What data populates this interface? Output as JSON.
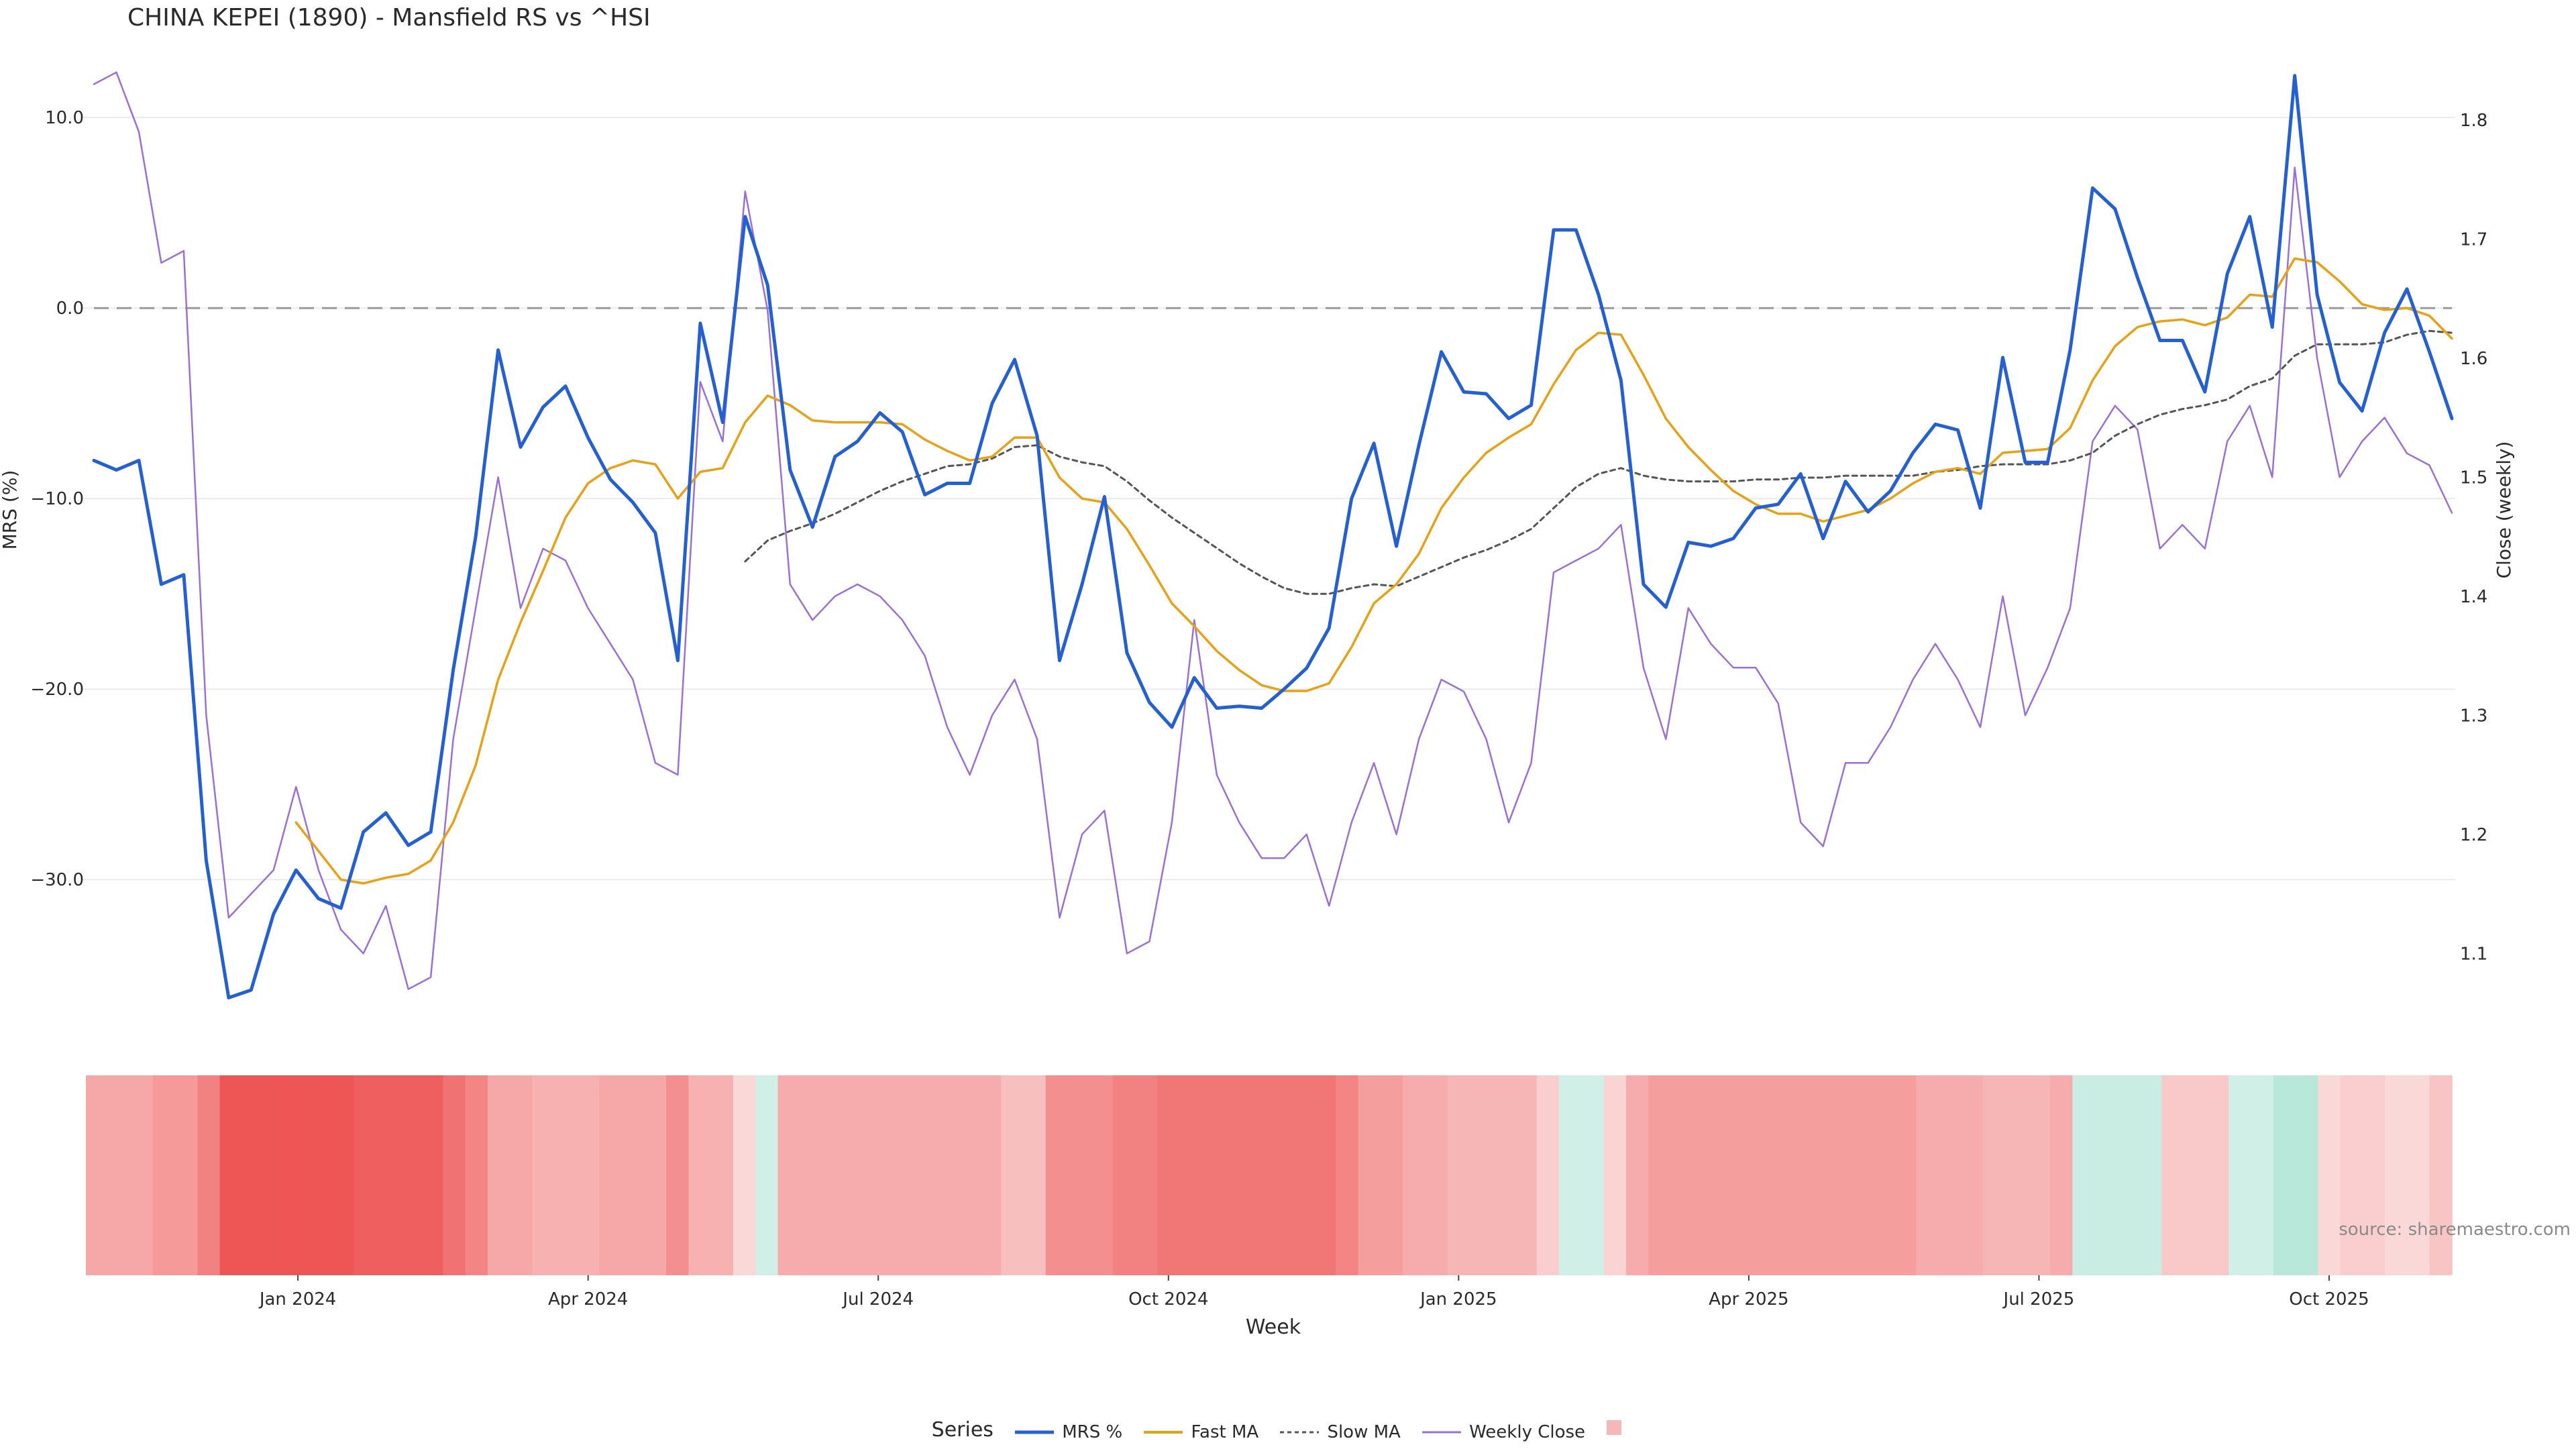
{
  "chart_data": {
    "type": "line",
    "title": "CHINA KEPEI (1890) - Mansfield RS vs ^HSI",
    "xlabel": "Week",
    "ylabel_left": "MRS (%)",
    "ylabel_right": "Close (weekly)",
    "ylim_left": [
      -37,
      13
    ],
    "ylim_right": [
      1.05,
      1.85
    ],
    "yticks_left": [
      "10.0",
      "0.0",
      "−10.0",
      "−20.0",
      "−30.0"
    ],
    "yticks_left_values": [
      10,
      0,
      -10,
      -20,
      -30
    ],
    "yticks_right": [
      "1.8",
      "1.7",
      "1.6",
      "1.5",
      "1.4",
      "1.3",
      "1.2",
      "1.1"
    ],
    "yticks_right_values": [
      1.8,
      1.7,
      1.6,
      1.5,
      1.4,
      1.3,
      1.2,
      1.1
    ],
    "x_tick_labels": [
      "Jan 2024",
      "Apr 2024",
      "Jul 2024",
      "Oct 2024",
      "Jan 2025",
      "Apr 2025",
      "Jul 2025",
      "Oct 2025"
    ],
    "x_tick_weeks": [
      9.5,
      22.5,
      35.5,
      48.5,
      61.5,
      74.5,
      87.5,
      100.5
    ],
    "zero_line": 0,
    "series": [
      {
        "name": "MRS %",
        "color": "#2460d0",
        "axis": "left",
        "values": [
          -8,
          -8.5,
          -8,
          -14.5,
          -14,
          -29,
          -36.2,
          -35.8,
          -31.8,
          -29.5,
          -31,
          -31.5,
          -27.5,
          -26.5,
          -28.2,
          -27.5,
          -19,
          -12,
          -2.2,
          -7.3,
          -5.2,
          -4.1,
          -6.8,
          -9,
          -10.2,
          -11.8,
          -18.5,
          -0.8,
          -6,
          4.8,
          1.2,
          -8.5,
          -11.5,
          -7.8,
          -7,
          -5.5,
          -6.5,
          -9.8,
          -9.2,
          -9.2,
          -5,
          -2.7,
          -6.7,
          -18.5,
          -14.5,
          -9.9,
          -18.1,
          -20.7,
          -22,
          -19.4,
          -21,
          -20.9,
          -21,
          -20,
          -18.9,
          -16.8,
          -10,
          -7.1,
          -12.5,
          -7.2,
          -2.3,
          -4.4,
          -4.5,
          -5.8,
          -5.1,
          4.1,
          4.1,
          0.7,
          -3.8,
          -14.5,
          -15.7,
          -12.3,
          -12.5,
          -12.1,
          -10.5,
          -10.3,
          -8.7,
          -12.1,
          -9.1,
          -10.7,
          -9.6,
          -7.6,
          -6.1,
          -6.4,
          -10.5,
          -2.6,
          -8.1,
          -8.1,
          -2.2,
          6.3,
          5.2,
          1.6,
          -1.7,
          -1.7,
          -4.4,
          1.8,
          4.8,
          -1,
          12.2,
          0.7,
          -3.9,
          -5.4,
          -1.3,
          1,
          -2.3,
          -5.8
        ]
      },
      {
        "name": "Fast MA",
        "color": "#e6a117",
        "axis": "left",
        "values": [
          null,
          null,
          null,
          null,
          null,
          null,
          null,
          null,
          null,
          -27,
          -28.5,
          -30,
          -30.2,
          -29.9,
          -29.7,
          -29,
          -27,
          -24,
          -19.5,
          -16.5,
          -13.8,
          -11,
          -9.2,
          -8.4,
          -8,
          -8.2,
          -10,
          -8.6,
          -8.4,
          -6,
          -4.6,
          -5.1,
          -5.9,
          -6,
          -6,
          -6,
          -6.1,
          -6.9,
          -7.5,
          -8,
          -7.8,
          -6.8,
          -6.8,
          -8.9,
          -10,
          -10.2,
          -11.6,
          -13.5,
          -15.5,
          -16.7,
          -18,
          -19,
          -19.8,
          -20.1,
          -20.1,
          -19.7,
          -17.8,
          -15.5,
          -14.5,
          -12.9,
          -10.5,
          -8.9,
          -7.6,
          -6.8,
          -6.1,
          -4,
          -2.2,
          -1.3,
          -1.4,
          -3.5,
          -5.8,
          -7.3,
          -8.5,
          -9.6,
          -10.3,
          -10.8,
          -10.8,
          -11.2,
          -10.9,
          -10.6,
          -10,
          -9.2,
          -8.6,
          -8.4,
          -8.7,
          -7.6,
          -7.5,
          -7.4,
          -6.3,
          -3.8,
          -2,
          -1,
          -0.7,
          -0.6,
          -0.9,
          -0.5,
          0.7,
          0.6,
          2.6,
          2.4,
          1.4,
          0.2,
          -0.1,
          0,
          -0.4,
          -1.6
        ]
      },
      {
        "name": "Slow MA",
        "color": "#555555",
        "axis": "left",
        "dash": true,
        "values": [
          null,
          null,
          null,
          null,
          null,
          null,
          null,
          null,
          null,
          null,
          null,
          null,
          null,
          null,
          null,
          null,
          null,
          null,
          null,
          null,
          null,
          null,
          null,
          null,
          null,
          null,
          null,
          null,
          null,
          -13.3,
          -12.2,
          -11.7,
          -11.3,
          -10.8,
          -10.2,
          -9.6,
          -9.1,
          -8.7,
          -8.3,
          -8.2,
          -7.9,
          -7.3,
          -7.2,
          -7.8,
          -8.1,
          -8.3,
          -9.1,
          -10.1,
          -11,
          -11.8,
          -12.6,
          -13.4,
          -14.1,
          -14.7,
          -15,
          -15,
          -14.7,
          -14.5,
          -14.6,
          -14.1,
          -13.6,
          -13.1,
          -12.7,
          -12.2,
          -11.6,
          -10.5,
          -9.4,
          -8.7,
          -8.4,
          -8.8,
          -9,
          -9.1,
          -9.1,
          -9.1,
          -9,
          -9,
          -8.9,
          -8.9,
          -8.8,
          -8.8,
          -8.8,
          -8.8,
          -8.6,
          -8.5,
          -8.3,
          -8.2,
          -8.2,
          -8.2,
          -8,
          -7.6,
          -6.7,
          -6.1,
          -5.6,
          -5.3,
          -5.1,
          -4.8,
          -4.1,
          -3.7,
          -2.5,
          -1.9,
          -1.9,
          -1.9,
          -1.8,
          -1.4,
          -1.2,
          -1.3
        ]
      },
      {
        "name": "Weekly Close",
        "color": "#9b70d4",
        "axis": "right",
        "values": [
          1.83,
          1.84,
          1.79,
          1.68,
          1.69,
          1.3,
          1.13,
          1.15,
          1.17,
          1.24,
          1.17,
          1.12,
          1.1,
          1.14,
          1.07,
          1.08,
          1.28,
          1.39,
          1.5,
          1.39,
          1.44,
          1.43,
          1.39,
          1.36,
          1.33,
          1.26,
          1.25,
          1.58,
          1.53,
          1.74,
          1.64,
          1.41,
          1.38,
          1.4,
          1.41,
          1.4,
          1.38,
          1.35,
          1.29,
          1.25,
          1.3,
          1.33,
          1.28,
          1.13,
          1.2,
          1.22,
          1.1,
          1.11,
          1.21,
          1.38,
          1.25,
          1.21,
          1.18,
          1.18,
          1.2,
          1.14,
          1.21,
          1.26,
          1.2,
          1.28,
          1.33,
          1.32,
          1.28,
          1.21,
          1.26,
          1.42,
          1.43,
          1.44,
          1.46,
          1.34,
          1.28,
          1.39,
          1.36,
          1.34,
          1.34,
          1.31,
          1.21,
          1.19,
          1.26,
          1.26,
          1.29,
          1.33,
          1.36,
          1.33,
          1.29,
          1.4,
          1.3,
          1.34,
          1.39,
          1.53,
          1.56,
          1.54,
          1.44,
          1.46,
          1.44,
          1.53,
          1.56,
          1.5,
          1.76,
          1.6,
          1.5,
          1.53,
          1.55,
          1.52,
          1.51,
          1.47
        ]
      }
    ],
    "heatmap_strip": {
      "description": "MRS regime shading per week (negative = red, positive = green)",
      "values": [
        -13,
        -13,
        -13,
        -16,
        -16,
        -21,
        -30,
        -30,
        -30,
        -30,
        -30,
        -30,
        -28,
        -28,
        -28,
        -28,
        -24,
        -20,
        -13,
        -13,
        -11,
        -11,
        -11,
        -13,
        -13,
        -13,
        -18,
        -11,
        -11,
        -3,
        2,
        -12,
        -12,
        -12,
        -12,
        -12,
        -12,
        -12,
        -12,
        -12,
        -12,
        -8,
        -8,
        -18,
        -18,
        -18,
        -21,
        -21,
        -23,
        -23,
        -23,
        -23,
        -23,
        -23,
        -23,
        -23,
        -20,
        -15,
        -15,
        -12,
        -12,
        -10,
        -10,
        -10,
        -10,
        -5,
        2,
        2,
        -4,
        -12,
        -15,
        -15,
        -15,
        -15,
        -15,
        -15,
        -15,
        -15,
        -15,
        -15,
        -15,
        -15,
        -12,
        -12,
        -12,
        -10,
        -10,
        -10,
        -12,
        3,
        3,
        3,
        3,
        -6,
        -6,
        -6,
        2,
        2,
        6,
        6,
        -3,
        -5,
        -5,
        -3,
        -3,
        -7
      ]
    }
  },
  "source_text": "source: sharemaestro.com",
  "legend": {
    "title": "Series",
    "items": [
      "MRS %",
      "Fast MA",
      "Slow MA",
      "Weekly Close",
      ""
    ],
    "strip_swatch_color": "#f4b8b8"
  }
}
